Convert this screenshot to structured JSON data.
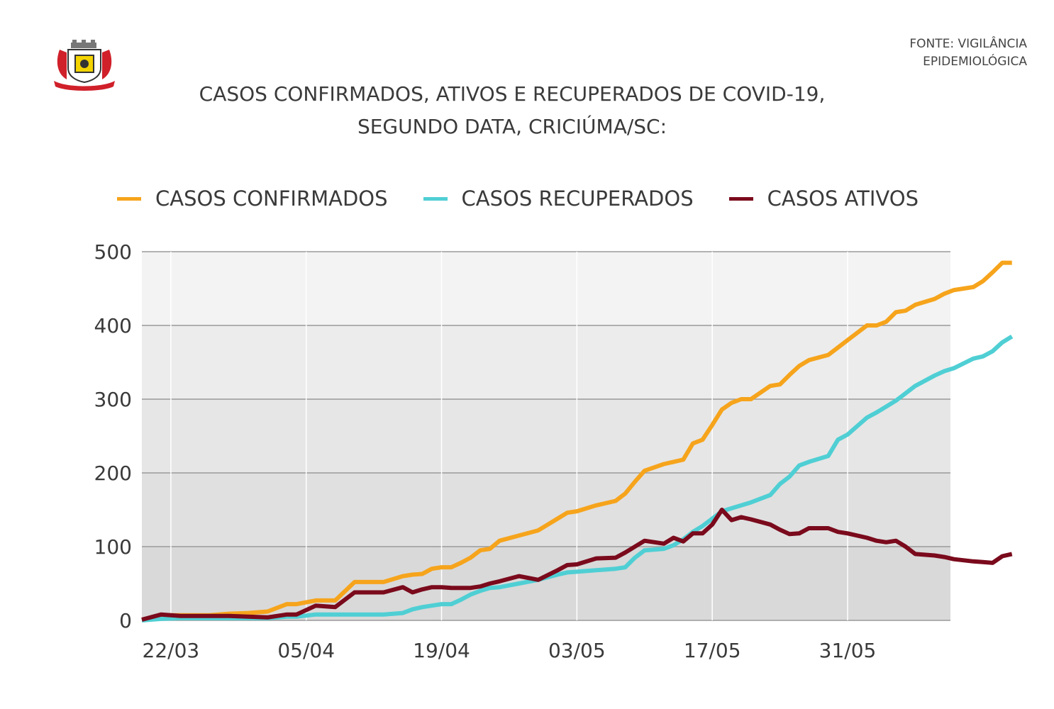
{
  "source": {
    "line1": "FONTE: VIGILÂNCIA",
    "line2": "EPIDEMIOLÓGICA"
  },
  "logo": {
    "name": "brasao-criciuma",
    "colors": {
      "red": "#d0202a",
      "yellow": "#f4d400",
      "grey": "#777777"
    }
  },
  "chart_data": {
    "type": "line",
    "title_lines": [
      "CASOS CONFIRMADOS, ATIVOS E RECUPERADOS DE COVID-19,",
      "SEGUNDO DATA, CRICIÚMA/SC:"
    ],
    "xlabel": "",
    "ylabel": "",
    "x_start": "2020-03-19",
    "x_end": "2020-06-11",
    "x_ticks": [
      "22/03",
      "05/04",
      "19/04",
      "03/05",
      "17/05",
      "31/05"
    ],
    "y_ticks": [
      0,
      100,
      200,
      300,
      400,
      500
    ],
    "ylim": [
      0,
      500
    ],
    "grid": true,
    "legend_position": "top",
    "series": [
      {
        "name": "CASOS CONFIRMADOS",
        "color": "#f6a41c",
        "points": [
          [
            "2020-03-19",
            1
          ],
          [
            "2020-03-21",
            7
          ],
          [
            "2020-03-23",
            7
          ],
          [
            "2020-03-26",
            7
          ],
          [
            "2020-03-28",
            9
          ],
          [
            "2020-03-30",
            10
          ],
          [
            "2020-04-01",
            12
          ],
          [
            "2020-04-03",
            22
          ],
          [
            "2020-04-04",
            22
          ],
          [
            "2020-04-06",
            27
          ],
          [
            "2020-04-08",
            27
          ],
          [
            "2020-04-10",
            52
          ],
          [
            "2020-04-13",
            52
          ],
          [
            "2020-04-15",
            60
          ],
          [
            "2020-04-16",
            62
          ],
          [
            "2020-04-17",
            63
          ],
          [
            "2020-04-18",
            70
          ],
          [
            "2020-04-19",
            72
          ],
          [
            "2020-04-20",
            72
          ],
          [
            "2020-04-21",
            78
          ],
          [
            "2020-04-22",
            85
          ],
          [
            "2020-04-23",
            95
          ],
          [
            "2020-04-24",
            97
          ],
          [
            "2020-04-25",
            108
          ],
          [
            "2020-04-27",
            115
          ],
          [
            "2020-04-29",
            122
          ],
          [
            "2020-05-01",
            138
          ],
          [
            "2020-05-02",
            146
          ],
          [
            "2020-05-03",
            148
          ],
          [
            "2020-05-05",
            156
          ],
          [
            "2020-05-07",
            162
          ],
          [
            "2020-05-08",
            172
          ],
          [
            "2020-05-09",
            188
          ],
          [
            "2020-05-10",
            203
          ],
          [
            "2020-05-12",
            212
          ],
          [
            "2020-05-13",
            215
          ],
          [
            "2020-05-14",
            218
          ],
          [
            "2020-05-15",
            240
          ],
          [
            "2020-05-16",
            245
          ],
          [
            "2020-05-17",
            265
          ],
          [
            "2020-05-18",
            286
          ],
          [
            "2020-05-19",
            295
          ],
          [
            "2020-05-20",
            300
          ],
          [
            "2020-05-21",
            300
          ],
          [
            "2020-05-23",
            318
          ],
          [
            "2020-05-24",
            320
          ],
          [
            "2020-05-25",
            333
          ],
          [
            "2020-05-26",
            345
          ],
          [
            "2020-05-27",
            353
          ],
          [
            "2020-05-29",
            360
          ],
          [
            "2020-05-30",
            370
          ],
          [
            "2020-05-31",
            380
          ],
          [
            "2020-06-02",
            400
          ],
          [
            "2020-06-03",
            400
          ],
          [
            "2020-06-04",
            405
          ],
          [
            "2020-06-05",
            418
          ],
          [
            "2020-06-06",
            420
          ],
          [
            "2020-06-07",
            428
          ],
          [
            "2020-06-09",
            436
          ],
          [
            "2020-06-10",
            443
          ],
          [
            "2020-06-11",
            448
          ],
          [
            "2020-06-13",
            452
          ],
          [
            "2020-06-14",
            460
          ],
          [
            "2020-06-15",
            472
          ],
          [
            "2020-06-16",
            485
          ],
          [
            "2020-06-17",
            485
          ]
        ]
      },
      {
        "name": "CASOS RECUPERADOS",
        "color": "#4fcfd4",
        "points": [
          [
            "2020-03-19",
            0
          ],
          [
            "2020-03-21",
            2
          ],
          [
            "2020-03-23",
            3
          ],
          [
            "2020-03-26",
            3
          ],
          [
            "2020-03-28",
            3
          ],
          [
            "2020-03-30",
            3
          ],
          [
            "2020-04-01",
            3
          ],
          [
            "2020-04-03",
            5
          ],
          [
            "2020-04-04",
            5
          ],
          [
            "2020-04-06",
            8
          ],
          [
            "2020-04-08",
            8
          ],
          [
            "2020-04-10",
            8
          ],
          [
            "2020-04-13",
            8
          ],
          [
            "2020-04-15",
            10
          ],
          [
            "2020-04-16",
            15
          ],
          [
            "2020-04-17",
            18
          ],
          [
            "2020-04-18",
            20
          ],
          [
            "2020-04-19",
            22
          ],
          [
            "2020-04-20",
            22
          ],
          [
            "2020-04-21",
            28
          ],
          [
            "2020-04-22",
            35
          ],
          [
            "2020-04-23",
            40
          ],
          [
            "2020-04-24",
            44
          ],
          [
            "2020-04-25",
            45
          ],
          [
            "2020-04-27",
            50
          ],
          [
            "2020-04-29",
            55
          ],
          [
            "2020-05-01",
            62
          ],
          [
            "2020-05-02",
            65
          ],
          [
            "2020-05-03",
            66
          ],
          [
            "2020-05-05",
            68
          ],
          [
            "2020-05-07",
            70
          ],
          [
            "2020-05-08",
            72
          ],
          [
            "2020-05-09",
            85
          ],
          [
            "2020-05-10",
            95
          ],
          [
            "2020-05-12",
            97
          ],
          [
            "2020-05-13",
            102
          ],
          [
            "2020-05-14",
            110
          ],
          [
            "2020-05-15",
            120
          ],
          [
            "2020-05-16",
            128
          ],
          [
            "2020-05-17",
            138
          ],
          [
            "2020-05-18",
            148
          ],
          [
            "2020-05-19",
            152
          ],
          [
            "2020-05-20",
            156
          ],
          [
            "2020-05-21",
            160
          ],
          [
            "2020-05-23",
            170
          ],
          [
            "2020-05-24",
            185
          ],
          [
            "2020-05-25",
            195
          ],
          [
            "2020-05-26",
            210
          ],
          [
            "2020-05-27",
            215
          ],
          [
            "2020-05-29",
            223
          ],
          [
            "2020-05-30",
            245
          ],
          [
            "2020-05-31",
            252
          ],
          [
            "2020-06-02",
            275
          ],
          [
            "2020-06-03",
            282
          ],
          [
            "2020-06-04",
            290
          ],
          [
            "2020-06-05",
            298
          ],
          [
            "2020-06-06",
            308
          ],
          [
            "2020-06-07",
            318
          ],
          [
            "2020-06-09",
            332
          ],
          [
            "2020-06-10",
            338
          ],
          [
            "2020-06-11",
            342
          ],
          [
            "2020-06-13",
            355
          ],
          [
            "2020-06-14",
            358
          ],
          [
            "2020-06-15",
            365
          ],
          [
            "2020-06-16",
            377
          ],
          [
            "2020-06-17",
            385
          ]
        ]
      },
      {
        "name": "CASOS ATIVOS",
        "color": "#7a0a1c",
        "points": [
          [
            "2020-03-19",
            1
          ],
          [
            "2020-03-21",
            8
          ],
          [
            "2020-03-23",
            6
          ],
          [
            "2020-03-26",
            6
          ],
          [
            "2020-03-28",
            6
          ],
          [
            "2020-03-30",
            5
          ],
          [
            "2020-04-01",
            4
          ],
          [
            "2020-04-03",
            8
          ],
          [
            "2020-04-04",
            8
          ],
          [
            "2020-04-06",
            20
          ],
          [
            "2020-04-08",
            18
          ],
          [
            "2020-04-10",
            38
          ],
          [
            "2020-04-13",
            38
          ],
          [
            "2020-04-15",
            45
          ],
          [
            "2020-04-16",
            38
          ],
          [
            "2020-04-17",
            42
          ],
          [
            "2020-04-18",
            45
          ],
          [
            "2020-04-19",
            45
          ],
          [
            "2020-04-20",
            44
          ],
          [
            "2020-04-21",
            44
          ],
          [
            "2020-04-22",
            44
          ],
          [
            "2020-04-23",
            46
          ],
          [
            "2020-04-24",
            50
          ],
          [
            "2020-04-25",
            53
          ],
          [
            "2020-04-27",
            60
          ],
          [
            "2020-04-29",
            55
          ],
          [
            "2020-05-01",
            68
          ],
          [
            "2020-05-02",
            75
          ],
          [
            "2020-05-03",
            76
          ],
          [
            "2020-05-05",
            84
          ],
          [
            "2020-05-07",
            85
          ],
          [
            "2020-05-08",
            92
          ],
          [
            "2020-05-09",
            100
          ],
          [
            "2020-05-10",
            108
          ],
          [
            "2020-05-12",
            104
          ],
          [
            "2020-05-13",
            112
          ],
          [
            "2020-05-14",
            107
          ],
          [
            "2020-05-15",
            118
          ],
          [
            "2020-05-16",
            118
          ],
          [
            "2020-05-17",
            130
          ],
          [
            "2020-05-18",
            150
          ],
          [
            "2020-05-19",
            136
          ],
          [
            "2020-05-20",
            140
          ],
          [
            "2020-05-21",
            137
          ],
          [
            "2020-05-23",
            130
          ],
          [
            "2020-05-24",
            123
          ],
          [
            "2020-05-25",
            117
          ],
          [
            "2020-05-26",
            118
          ],
          [
            "2020-05-27",
            125
          ],
          [
            "2020-05-29",
            125
          ],
          [
            "2020-05-30",
            120
          ],
          [
            "2020-05-31",
            118
          ],
          [
            "2020-06-02",
            112
          ],
          [
            "2020-06-03",
            108
          ],
          [
            "2020-06-04",
            106
          ],
          [
            "2020-06-05",
            108
          ],
          [
            "2020-06-06",
            100
          ],
          [
            "2020-06-07",
            90
          ],
          [
            "2020-06-09",
            88
          ],
          [
            "2020-06-10",
            86
          ],
          [
            "2020-06-11",
            83
          ],
          [
            "2020-06-13",
            80
          ],
          [
            "2020-06-14",
            79
          ],
          [
            "2020-06-15",
            78
          ],
          [
            "2020-06-16",
            87
          ],
          [
            "2020-06-17",
            90
          ]
        ]
      }
    ]
  }
}
